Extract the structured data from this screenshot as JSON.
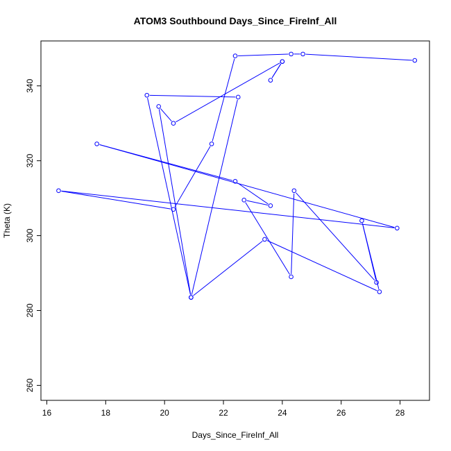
{
  "chart_data": {
    "type": "line",
    "title": "ATOM3 Southbound Days_Since_FireInf_All",
    "xlabel": "Days_Since_FireInf_All",
    "ylabel": "Theta (K)",
    "xlim": [
      15.8,
      29.0
    ],
    "ylim": [
      256,
      352
    ],
    "xticks": [
      "16",
      "18",
      "20",
      "22",
      "24",
      "26",
      "28"
    ],
    "yticks": [
      "260",
      "280",
      "300",
      "320",
      "340"
    ],
    "grid": false,
    "legend": "none",
    "color": "#0000ff",
    "series": [
      {
        "x": [
          28.5,
          24.7,
          24.3,
          22.4,
          21.6,
          20.3,
          16.4,
          27.9,
          17.7,
          22.4,
          23.6,
          22.7,
          24.3,
          24.4,
          27.2,
          26.7,
          27.3,
          23.4,
          20.9,
          19.4,
          22.5,
          20.9,
          19.8,
          20.3,
          24.0,
          23.6,
          24.0
        ],
        "y": [
          346.8,
          348.5,
          348.5,
          348.0,
          324.5,
          307.0,
          312.0,
          302.0,
          324.5,
          314.5,
          308.0,
          309.5,
          289.0,
          312.0,
          287.5,
          304.0,
          285.0,
          299.0,
          283.5,
          337.5,
          337.0,
          283.5,
          334.5,
          330.0,
          346.5,
          341.5,
          346.5
        ]
      }
    ]
  }
}
